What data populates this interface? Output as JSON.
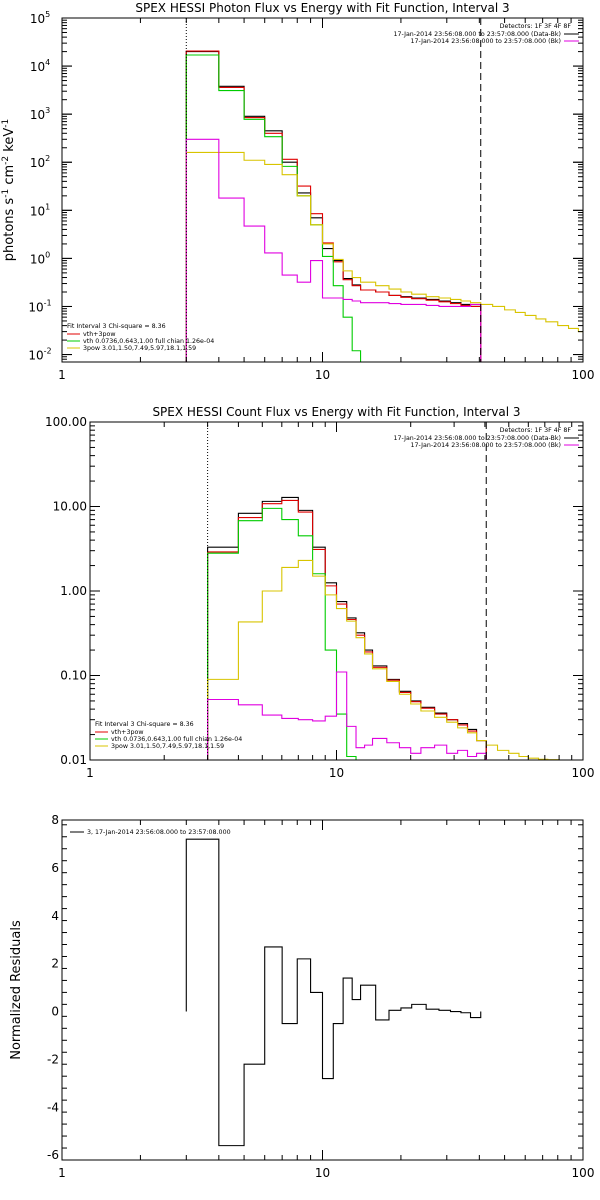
{
  "chart_data": [
    {
      "type": "line",
      "title": "SPEX HESSI Photon Flux vs Energy with Fit Function, Interval 3",
      "ylabel_parts": [
        "photons s",
        "-1",
        " cm",
        "-2",
        " keV",
        "-1"
      ],
      "x_scale": "log",
      "y_scale": "log",
      "xlim": [
        1,
        100
      ],
      "ylim": [
        0.007,
        100000
      ],
      "x_ticks": [
        1,
        10,
        100
      ],
      "x_tick_labels": [
        "1",
        "10",
        "100"
      ],
      "y_ticks": [
        0.01,
        0.1,
        1,
        10,
        100,
        1000,
        10000,
        100000
      ],
      "y_tick_labels": [
        [
          "10",
          "-2"
        ],
        [
          "10",
          "-1"
        ],
        [
          "10",
          "0"
        ],
        [
          "10",
          "1"
        ],
        [
          "10",
          "2"
        ],
        [
          "10",
          "3"
        ],
        [
          "10",
          "4"
        ],
        [
          "10",
          "5"
        ]
      ],
      "vlines": [
        {
          "x": 3,
          "style": "dotted"
        },
        {
          "x": 40.5,
          "style": "dashed"
        }
      ],
      "legend_right": {
        "header": "Detectors: 1F 3F 4F 8F",
        "entries": [
          {
            "label": "17-Jan-2014 23:56:08.000 to 23:57:08.000 (Data-Bk)",
            "color": "#000000"
          },
          {
            "label": "17-Jan-2014 23:56:08.000 to 23:57:08.000 (Bk)",
            "color": "#e000e0"
          }
        ]
      },
      "legend_left": {
        "header": "Fit Interval 3   Chi-square = 8.36",
        "entries": [
          {
            "label": "vth+3pow",
            "color": "#e00000"
          },
          {
            "label": "vth 0.0736,0.643,1.00  full chian 1.26e-04",
            "color": "#00cc00"
          },
          {
            "label": "3pow 3.01,1.50,7.49,5.97,18.1,1.59",
            "color": "#d8c400"
          }
        ]
      },
      "series": [
        {
          "color": "#000000",
          "edges": [
            3,
            4,
            5,
            6,
            7,
            8,
            9,
            10,
            11,
            12,
            13,
            14,
            16,
            18,
            20,
            22,
            25,
            28,
            31,
            34,
            37,
            40.5
          ],
          "values": [
            20000,
            3800,
            900,
            450,
            100,
            23,
            7,
            1.6,
            0.9,
            0.38,
            0.28,
            0.22,
            0.2,
            0.17,
            0.16,
            0.15,
            0.14,
            0.13,
            0.12,
            0.11,
            0.1
          ]
        },
        {
          "color": "#e00000",
          "edges": [
            3,
            4,
            5,
            6,
            7,
            8,
            9,
            10,
            11,
            12,
            13,
            14,
            16,
            18,
            20,
            22,
            25,
            28,
            31,
            34,
            37,
            40.5
          ],
          "values": [
            20500,
            3600,
            850,
            400,
            115,
            32,
            8.5,
            2.1,
            0.85,
            0.36,
            0.27,
            0.22,
            0.2,
            0.17,
            0.155,
            0.145,
            0.135,
            0.125,
            0.115,
            0.105,
            0.1
          ]
        },
        {
          "color": "#00cc00",
          "edges": [
            3,
            4,
            5,
            6,
            7,
            8,
            9,
            10,
            11,
            12,
            13,
            14
          ],
          "values": [
            17000,
            3100,
            780,
            340,
            82,
            20,
            5,
            1.1,
            0.27,
            0.06,
            0.012
          ]
        },
        {
          "color": "#d8c400",
          "edges": [
            3,
            4,
            5,
            6,
            7,
            8,
            9,
            10,
            11,
            12,
            13,
            14,
            16,
            18,
            20,
            22,
            25,
            28,
            31,
            34,
            37,
            40.5,
            45,
            50,
            55,
            60,
            66,
            72,
            80,
            88,
            96,
            100
          ],
          "values": [
            160,
            160,
            110,
            90,
            55,
            20,
            5,
            2,
            0.95,
            0.55,
            0.4,
            0.32,
            0.27,
            0.23,
            0.2,
            0.18,
            0.16,
            0.15,
            0.14,
            0.13,
            0.12,
            0.11,
            0.1,
            0.085,
            0.075,
            0.065,
            0.055,
            0.048,
            0.04,
            0.035,
            0.03
          ]
        },
        {
          "color": "#e000e0",
          "edges": [
            3,
            4,
            5,
            6,
            7,
            8,
            9,
            10,
            11,
            12,
            13,
            14,
            16,
            18,
            20,
            22,
            25,
            28,
            31,
            34,
            37,
            40.5
          ],
          "values": [
            300,
            18,
            4.7,
            1.3,
            0.45,
            0.32,
            0.9,
            0.15,
            0.15,
            0.14,
            0.13,
            0.12,
            0.12,
            0.115,
            0.11,
            0.11,
            0.105,
            0.1,
            0.1,
            0.1,
            0.11
          ]
        }
      ]
    },
    {
      "type": "line",
      "title": "SPEX HESSI Count Flux vs Energy with Fit Function, Interval 3",
      "x_scale": "log",
      "y_scale": "log",
      "xlim": [
        1,
        100
      ],
      "ylim": [
        0.01,
        100
      ],
      "x_ticks": [
        1,
        10,
        100
      ],
      "x_tick_labels": [
        "1",
        "10",
        "100"
      ],
      "y_ticks": [
        0.01,
        0.1,
        1,
        10,
        100
      ],
      "y_tick_labels": [
        "0.01",
        "0.10",
        "1.00",
        "10.00",
        "100.00"
      ],
      "vlines": [
        {
          "x": 3,
          "style": "dotted"
        },
        {
          "x": 40.5,
          "style": "dashed"
        }
      ],
      "legend_right": {
        "header": "Detectors: 1F 3F 4F 8F",
        "entries": [
          {
            "label": "17-Jan-2014 23:56:08.000 to 23:57:08.000 (Data-Bk)",
            "color": "#000000"
          },
          {
            "label": "17-Jan-2014 23:56:08.000 to 23:57:08.000 (Bk)",
            "color": "#e000e0"
          }
        ]
      },
      "legend_left": {
        "header": "Fit Interval 3   Chi-square = 8.36",
        "entries": [
          {
            "label": "vth+3pow",
            "color": "#e00000"
          },
          {
            "label": "vth 0.0736,0.643,1.00  full chian 1.26e-04",
            "color": "#00cc00"
          },
          {
            "label": "3pow 3.01,1.50,7.49,5.97,18.1,1.59",
            "color": "#d8c400"
          }
        ]
      },
      "series": [
        {
          "color": "#000000",
          "edges": [
            3,
            4,
            5,
            6,
            7,
            8,
            9,
            10,
            11,
            12,
            13,
            14,
            16,
            18,
            20,
            22,
            25,
            28,
            31,
            34,
            37,
            40.5
          ],
          "values": [
            3.3,
            8.3,
            11.5,
            12.8,
            9,
            3.3,
            1.25,
            0.75,
            0.48,
            0.32,
            0.2,
            0.13,
            0.09,
            0.065,
            0.05,
            0.042,
            0.036,
            0.03,
            0.027,
            0.023,
            0.017
          ]
        },
        {
          "color": "#e00000",
          "edges": [
            3,
            4,
            5,
            6,
            7,
            8,
            9,
            10,
            11,
            12,
            13,
            14,
            16,
            18,
            20,
            22,
            25,
            28,
            31,
            34,
            37,
            40.5
          ],
          "values": [
            2.9,
            7.4,
            10.8,
            11.8,
            8.6,
            3.1,
            1.15,
            0.7,
            0.46,
            0.3,
            0.19,
            0.125,
            0.088,
            0.063,
            0.049,
            0.041,
            0.035,
            0.03,
            0.026,
            0.022,
            0.017
          ]
        },
        {
          "color": "#00cc00",
          "edges": [
            3,
            4,
            5,
            6,
            7,
            8,
            9,
            10,
            11,
            12
          ],
          "values": [
            2.8,
            6.8,
            9.5,
            7,
            4.5,
            1.6,
            0.2,
            0.035,
            0.011
          ]
        },
        {
          "color": "#d8c400",
          "edges": [
            3,
            4,
            5,
            6,
            7,
            8,
            9,
            10,
            11,
            12,
            13,
            14,
            16,
            18,
            20,
            22,
            25,
            28,
            31,
            34,
            37,
            40.5,
            45,
            50,
            55,
            60,
            66,
            72,
            80
          ],
          "values": [
            0.09,
            0.43,
            1,
            1.9,
            2.3,
            1.5,
            0.9,
            0.62,
            0.44,
            0.28,
            0.18,
            0.12,
            0.085,
            0.06,
            0.046,
            0.038,
            0.032,
            0.028,
            0.024,
            0.021,
            0.017,
            0.015,
            0.013,
            0.012,
            0.011,
            0.0105,
            0.0102,
            0.0101
          ]
        },
        {
          "color": "#e000e0",
          "edges": [
            3,
            4,
            5,
            6,
            7,
            8,
            9,
            10,
            11,
            12,
            13,
            14,
            16,
            18,
            20,
            22,
            25,
            28,
            31,
            34,
            37,
            40.5
          ],
          "values": [
            0.052,
            0.045,
            0.034,
            0.031,
            0.03,
            0.029,
            0.033,
            0.11,
            0.025,
            0.014,
            0.015,
            0.018,
            0.016,
            0.014,
            0.012,
            0.014,
            0.015,
            0.012,
            0.013,
            0.011,
            0.012
          ]
        }
      ]
    },
    {
      "type": "line",
      "title": "",
      "ylabel": "Normalized Residuals",
      "x_scale": "log",
      "y_scale": "linear",
      "xlim": [
        1,
        100
      ],
      "ylim": [
        -6.2,
        8
      ],
      "x_ticks": [
        1,
        10,
        100
      ],
      "x_tick_labels": [
        "1",
        "10",
        "100"
      ],
      "y_ticks": [
        -6,
        -4,
        -2,
        0,
        2,
        4,
        6,
        8
      ],
      "y_tick_labels": [
        "-6",
        "-4",
        "-2",
        "0",
        "2",
        "4",
        "6",
        "8"
      ],
      "legend_left": {
        "entries": [
          {
            "label": "3, 17-Jan-2014 23:56:08.000 to 23:57:08.000",
            "color": "#000000"
          }
        ]
      },
      "series": [
        {
          "color": "#000000",
          "closed": true,
          "edges": [
            3,
            4,
            5,
            6,
            7,
            8,
            9,
            10,
            11,
            12,
            13,
            14,
            16,
            18,
            20,
            22,
            25,
            28,
            31,
            34,
            37,
            40.5
          ],
          "values": [
            7.2,
            -5.6,
            -2.2,
            2.7,
            -0.5,
            2.2,
            0.8,
            -2.8,
            -0.5,
            1.4,
            0.5,
            1.1,
            -0.35,
            0.05,
            0.15,
            0.3,
            0.1,
            0.05,
            0,
            -0.05,
            -0.25
          ]
        }
      ]
    }
  ]
}
